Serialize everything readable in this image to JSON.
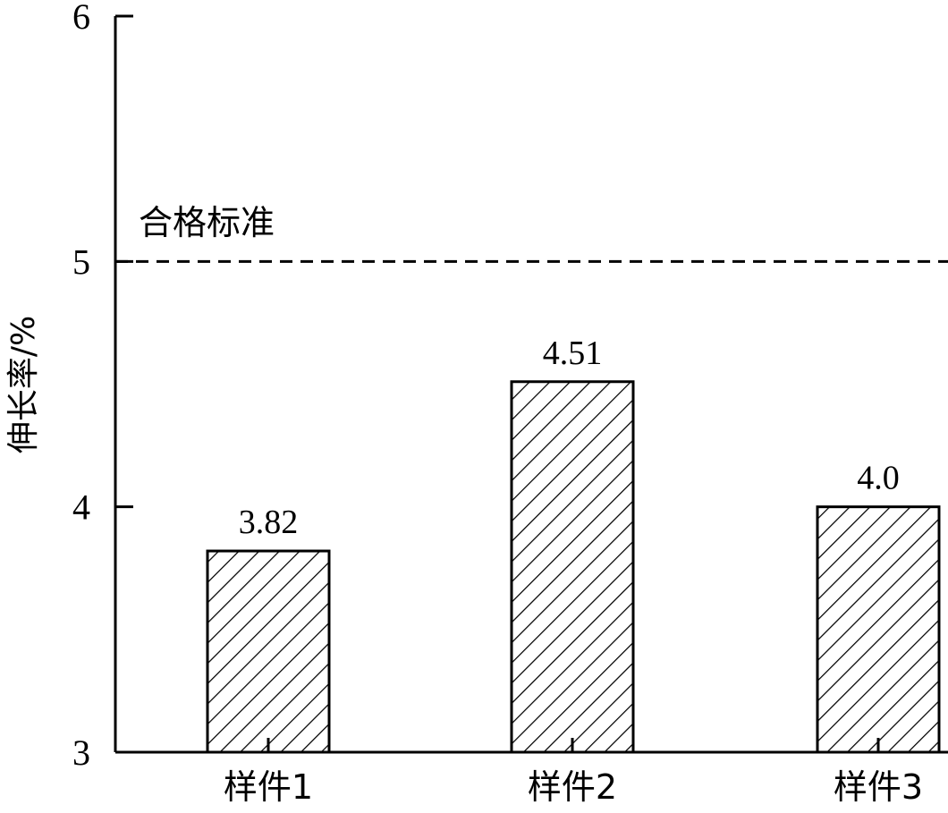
{
  "chart_data": {
    "type": "bar",
    "categories": [
      "样件1",
      "样件2",
      "样件3"
    ],
    "values": [
      3.82,
      4.51,
      4.0
    ],
    "value_labels": [
      "3.82",
      "4.51",
      "4.0"
    ],
    "ylabel": "伸长率/%",
    "xlabel": "",
    "ylim": [
      3,
      6
    ],
    "yticks": [
      "3",
      "4",
      "5",
      "6"
    ],
    "reference_line": {
      "value": 5,
      "label": "合格标准",
      "style": "dashed"
    },
    "bar_fill": "hatched",
    "grid": false
  }
}
